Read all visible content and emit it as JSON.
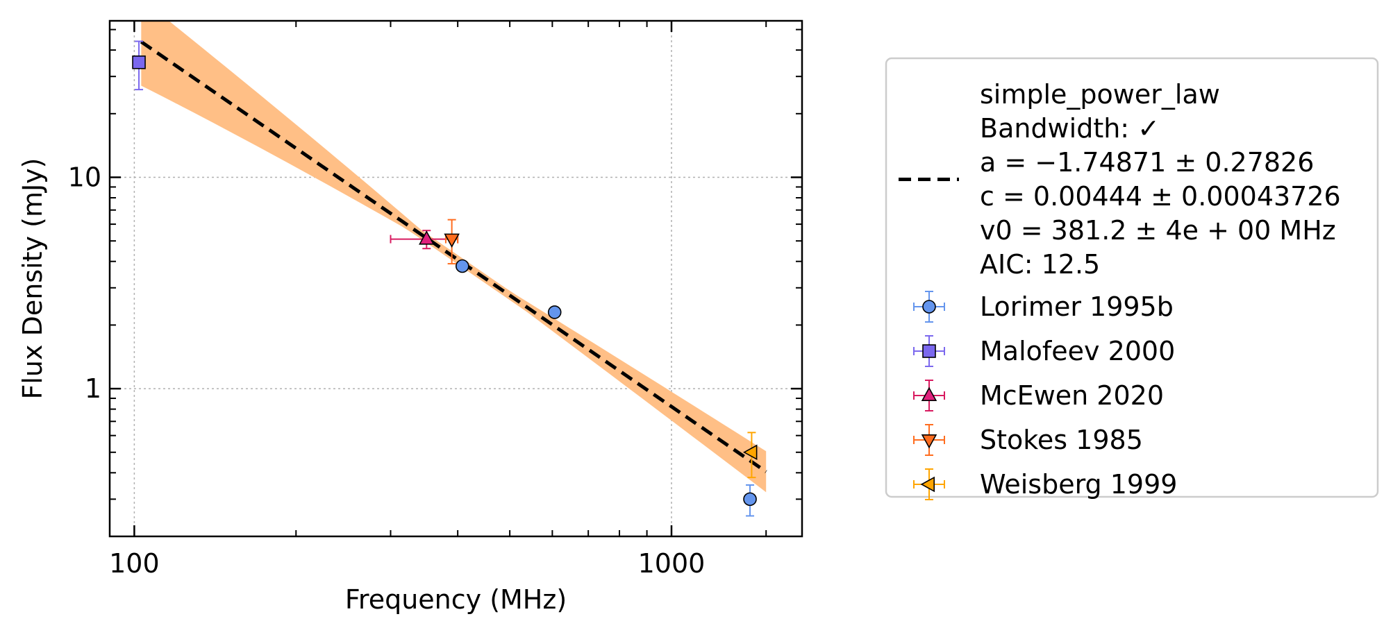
{
  "chart_data": {
    "type": "scatter",
    "xlabel": "Frequency (MHz)",
    "ylabel": "Flux Density (mJy)",
    "xscale": "log",
    "yscale": "log",
    "xlim": [
      90,
      1750
    ],
    "ylim": [
      0.2,
      55
    ],
    "xticks": [
      {
        "value": 100,
        "label": "100"
      },
      {
        "value": 1000,
        "label": "1000"
      }
    ],
    "yticks": [
      {
        "value": 1,
        "label": "1"
      },
      {
        "value": 10,
        "label": "10"
      }
    ],
    "grid": true,
    "legend_position": "right, outside plot area",
    "fit": {
      "name": "simple_power_law",
      "legend_lines": [
        "simple_power_law",
        "Bandwidth: ✓",
        "a = −1.74871 ± 0.27826",
        "c = 0.00444 ± 0.00043726",
        "v0 = 381.2 ± 4e + 00 MHz",
        "AIC: 12.5"
      ],
      "a": -1.74871,
      "a_err": 0.27826,
      "c": 0.00444,
      "c_err": 0.00043726,
      "v0_mhz": 381.2,
      "x_range": [
        103,
        1500
      ],
      "band_low_factor_at_range_ends": [
        0.62,
        0.8
      ],
      "band_high_factor_at_range_ends": [
        1.6,
        1.25
      ],
      "band_color": "#ffbf86",
      "line_color": "#000000"
    },
    "series": [
      {
        "name": "Lorimer 1995b",
        "marker": "circle",
        "color": "#6495ed",
        "errcolor": "#6495ed",
        "points": [
          {
            "x": 408,
            "y": 3.8,
            "yerr_low": 0.1,
            "yerr_high": 0.1
          },
          {
            "x": 606,
            "y": 2.3,
            "yerr_low": 0.08,
            "yerr_high": 0.08
          },
          {
            "x": 1400,
            "y": 0.3,
            "yerr_low": 0.05,
            "yerr_high": 0.05
          }
        ]
      },
      {
        "name": "Malofeev 2000",
        "marker": "square",
        "color": "#7b68ee",
        "errcolor": "#7b68ee",
        "points": [
          {
            "x": 102,
            "y": 35,
            "yerr_low": 9,
            "yerr_high": 9
          }
        ]
      },
      {
        "name": "McEwen 2020",
        "marker": "triangle-up",
        "color": "#e0217d",
        "errcolor": "#d81b60",
        "points": [
          {
            "x": 350,
            "y": 5.1,
            "yerr_low": 0.5,
            "yerr_high": 0.5,
            "xerr_low": 50,
            "xerr_high": 50
          }
        ]
      },
      {
        "name": "Stokes 1985",
        "marker": "triangle-down",
        "color": "#ff6d1f",
        "errcolor": "#ff6d1f",
        "points": [
          {
            "x": 390,
            "y": 5.1,
            "yerr_low": 1.2,
            "yerr_high": 1.2,
            "xerr_low": 10,
            "xerr_high": 10
          }
        ]
      },
      {
        "name": "Weisberg 1999",
        "marker": "triangle-left",
        "color": "#ffa500",
        "errcolor": "#ffa500",
        "points": [
          {
            "x": 1410,
            "y": 0.5,
            "yerr_low": 0.12,
            "yerr_high": 0.12
          }
        ]
      }
    ]
  }
}
